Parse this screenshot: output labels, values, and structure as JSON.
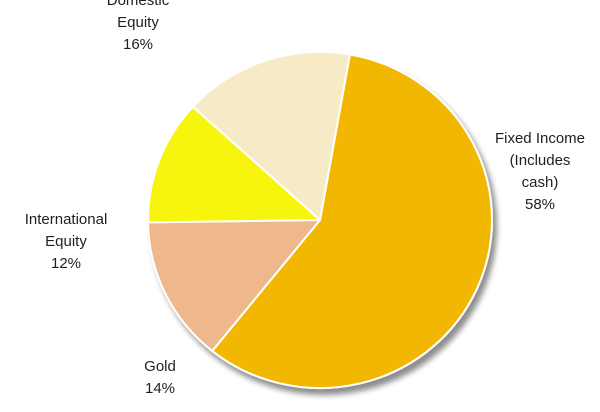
{
  "chart_data": {
    "type": "pie",
    "title": "",
    "slices": [
      {
        "label_lines": [
          "Fixed Income",
          "(Includes",
          "cash)"
        ],
        "value_label": "58%",
        "value": 58,
        "color": "#f2b705"
      },
      {
        "label_lines": [
          "Gold"
        ],
        "value_label": "14%",
        "value": 14,
        "color": "#eeb88c"
      },
      {
        "label_lines": [
          "International",
          "Equity"
        ],
        "value_label": "12%",
        "value": 12,
        "color": "#f7f50a"
      },
      {
        "label_lines": [
          "Domestic",
          "Equity"
        ],
        "value_label": "16%",
        "value": 16,
        "color": "#f6ebc6"
      }
    ],
    "legend": "none",
    "start_angle_deg": -80,
    "direction": "clockwise"
  }
}
